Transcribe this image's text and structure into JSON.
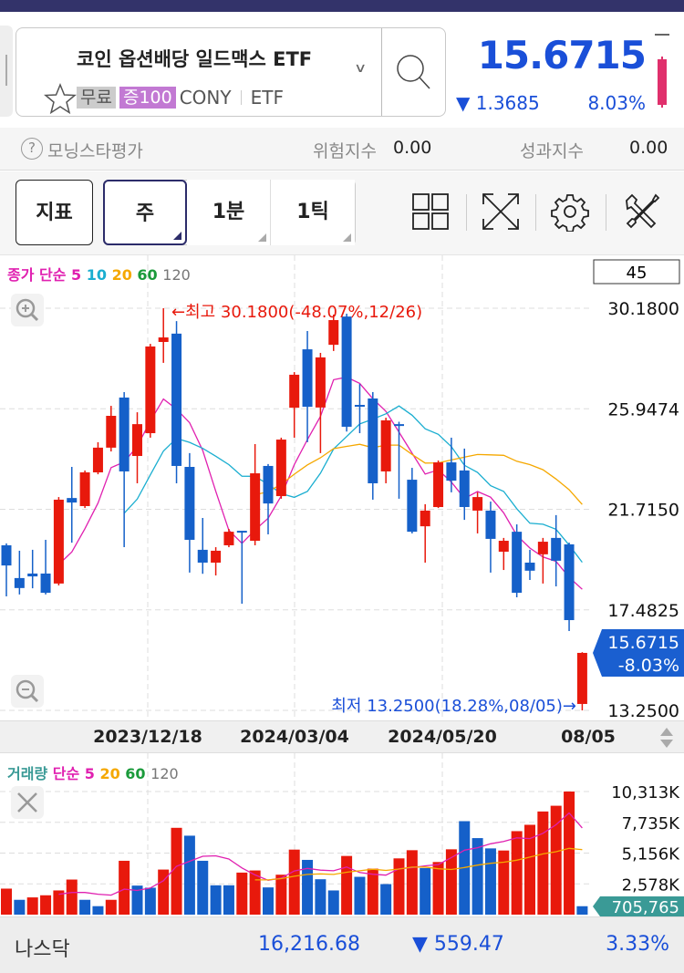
{
  "header": {
    "title": "코인 옵션배당 일드맥스 ETF",
    "tags": [
      "무료",
      "증100",
      "CONY",
      "ETF"
    ],
    "price": "15.6715",
    "change": "▼ 1.3685",
    "change_pct": "8.03%"
  },
  "ratings": {
    "morningstar_label": "모닝스타평가",
    "help_icon": "?",
    "risk_label": "위험지수",
    "risk_value": "0.00",
    "perf_label": "성과지수",
    "perf_value": "0.00"
  },
  "toolbar": {
    "indicator": "지표",
    "weekly": "주",
    "min1": "1분",
    "tick1": "1틱"
  },
  "colors": {
    "up": "#e8190c",
    "down": "#1560c9",
    "ma5": "#e020b0",
    "ma10": "#1aaed0",
    "ma20": "#f5a800",
    "ma60": "#1a9a3a",
    "ma120": "#777777",
    "accent": "#1a4fd8",
    "teal": "#3a9a96"
  },
  "chart_data": [
    {
      "type": "candlestick",
      "legend": {
        "prefix": "종가 단순",
        "periods": [
          "5",
          "10",
          "20",
          "60",
          "120"
        ]
      },
      "count_label": "45",
      "y_ticks": [
        "30.1800",
        "25.9474",
        "21.7150",
        "17.4825",
        "13.2500"
      ],
      "ylim": [
        13.25,
        30.18
      ],
      "x_ticks": [
        "2023/12/18",
        "2024/03/04",
        "2024/05/20",
        "08/05"
      ],
      "high_annotation": "←최고 30.1800(-48.07%,12/26)",
      "low_annotation": "최저 13.2500(18.28%,08/05)→",
      "last_price": "15.6715",
      "last_pct": "-8.03%",
      "ohlc": [
        [
          20.2,
          20.28,
          18.05,
          19.35
        ],
        [
          18.82,
          19.97,
          18.13,
          18.4
        ],
        [
          19.01,
          20.01,
          18.39,
          18.89
        ],
        [
          19.01,
          20.43,
          18.13,
          18.2
        ],
        [
          18.59,
          22.23,
          18.51,
          22.12
        ],
        [
          22.19,
          23.5,
          20.31,
          22.0
        ],
        [
          21.85,
          23.35,
          21.77,
          23.27
        ],
        [
          23.27,
          24.54,
          23.19,
          24.31
        ],
        [
          24.31,
          26.07,
          24.15,
          25.65
        ],
        [
          26.42,
          26.65,
          20.12,
          23.31
        ],
        [
          23.96,
          25.8,
          22.81,
          25.3
        ],
        [
          24.92,
          28.68,
          24.73,
          28.57
        ],
        [
          28.76,
          30.18,
          27.88,
          28.95
        ],
        [
          29.11,
          29.64,
          22.81,
          23.54
        ],
        [
          23.5,
          24.08,
          19.05,
          20.43
        ],
        [
          20.01,
          21.35,
          19.0,
          19.47
        ],
        [
          19.47,
          20.12,
          18.93,
          19.97
        ],
        [
          20.2,
          20.89,
          20.12,
          20.77
        ],
        [
          20.81,
          20.81,
          17.74,
          20.77
        ],
        [
          20.39,
          24.46,
          20.2,
          23.23
        ],
        [
          23.54,
          23.62,
          20.66,
          21.96
        ],
        [
          22.27,
          24.73,
          22.16,
          24.65
        ],
        [
          25.99,
          27.49,
          24.73,
          27.38
        ],
        [
          28.45,
          29.22,
          24.54,
          26.03
        ],
        [
          26.0,
          28.3,
          24.08,
          28.11
        ],
        [
          28.64,
          29.91,
          28.38,
          29.68
        ],
        [
          29.83,
          29.95,
          24.99,
          25.19
        ],
        [
          26.11,
          26.99,
          24.92,
          26.07
        ],
        [
          26.38,
          26.65,
          22.12,
          22.81
        ],
        [
          23.31,
          25.57,
          22.81,
          25.46
        ],
        [
          25.3,
          25.4,
          22.16,
          25.28
        ],
        [
          22.96,
          23.46,
          20.7,
          20.77
        ],
        [
          21.0,
          21.93,
          19.47,
          21.66
        ],
        [
          21.81,
          23.77,
          21.77,
          23.69
        ],
        [
          23.69,
          24.73,
          22.43,
          22.92
        ],
        [
          23.35,
          24.27,
          21.27,
          21.81
        ],
        [
          21.66,
          22.43,
          20.7,
          22.23
        ],
        [
          21.66,
          22.04,
          19.05,
          20.47
        ],
        [
          19.93,
          20.51,
          19.16,
          20.39
        ],
        [
          20.77,
          21.08,
          18.01,
          18.2
        ],
        [
          19.47,
          20.01,
          18.74,
          19.13
        ],
        [
          19.82,
          20.51,
          18.59,
          20.35
        ],
        [
          20.51,
          21.47,
          18.47,
          19.55
        ],
        [
          20.24,
          20.31,
          16.59,
          17.05
        ],
        [
          13.52,
          15.7,
          13.25,
          15.67
        ]
      ]
    },
    {
      "type": "bar",
      "legend": {
        "prefix": "거래량",
        "ma_label": "단순",
        "periods": [
          "5",
          "20",
          "60",
          "120"
        ]
      },
      "y_ticks": [
        "10,313K",
        "7,735K",
        "5,156K",
        "2,578K"
      ],
      "ylim": [
        0,
        10313
      ],
      "last_volume": "705,765",
      "values_k": [
        2179,
        1242,
        1444,
        1622,
        2027,
        2939,
        1242,
        710,
        1242,
        4511,
        2433,
        2255,
        3776,
        7273,
        6614,
        4511,
        2458,
        2458,
        3522,
        3700,
        2281,
        3345,
        5448,
        4587,
        2965,
        2027,
        4916,
        3168,
        3852,
        2559,
        4713,
        5397,
        3902,
        4409,
        5473,
        7830,
        6411,
        5549,
        5372,
        6994,
        7526,
        8641,
        9122,
        10313,
        706
      ],
      "directions": [
        "u",
        "d",
        "u",
        "u",
        "u",
        "u",
        "d",
        "d",
        "u",
        "u",
        "d",
        "d",
        "u",
        "u",
        "d",
        "d",
        "d",
        "d",
        "u",
        "u",
        "d",
        "u",
        "u",
        "d",
        "d",
        "d",
        "u",
        "d",
        "u",
        "d",
        "u",
        "u",
        "d",
        "u",
        "u",
        "d",
        "d",
        "d",
        "u",
        "u",
        "u",
        "u",
        "u",
        "u",
        "d"
      ]
    }
  ],
  "index_bar": {
    "name": "나스닥",
    "value": "16,216.68",
    "change": "▼ 559.47",
    "pct": "3.33%"
  }
}
